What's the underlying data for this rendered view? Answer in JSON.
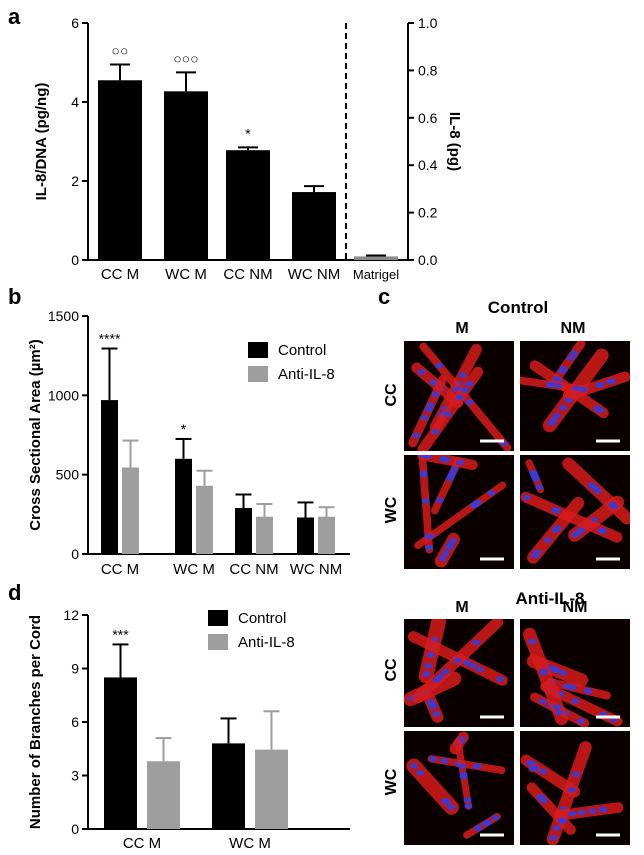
{
  "panel_labels": {
    "a": "a",
    "b": "b",
    "c": "c",
    "d": "d"
  },
  "colors": {
    "control": "#000000",
    "anti": "#9e9e9e",
    "matrigel": "#8a8a8a",
    "micro_red": "#d81b1b",
    "micro_blue": "#3b3bd6",
    "micro_bg": "#0a0000"
  },
  "chart_data": [
    {
      "id": "a",
      "type": "bar",
      "categories": [
        "CC M",
        "WC M",
        "CC NM",
        "WC NM",
        "Matrigel"
      ],
      "values": [
        4.55,
        4.27,
        2.78,
        1.72,
        null
      ],
      "errors": [
        0.4,
        0.48,
        0.07,
        0.15,
        null
      ],
      "annotations": [
        "○○",
        "○○○",
        "*",
        "",
        ""
      ],
      "ylabel": "IL-8/DNA (pg/ng)",
      "ylim": [
        0,
        6
      ],
      "yticks": [
        "0",
        "2",
        "4",
        "6"
      ],
      "y2label": "IL-8 (pg)",
      "y2lim": [
        0,
        1.0
      ],
      "y2ticks": [
        "0.0",
        "0.2",
        "0.4",
        "0.6",
        "0.8",
        "1.0"
      ],
      "secondary_values": {
        "Matrigel": 0.015
      },
      "secondary_errors": {
        "Matrigel": 0.004
      }
    },
    {
      "id": "b",
      "type": "bar",
      "categories": [
        "CC M",
        "WC M",
        "CC NM",
        "WC NM"
      ],
      "series": [
        {
          "name": "Control",
          "values": [
            970,
            600,
            290,
            230
          ],
          "errors": [
            325,
            125,
            85,
            95
          ]
        },
        {
          "name": "Anti-IL-8",
          "values": [
            545,
            430,
            235,
            235
          ],
          "errors": [
            170,
            95,
            80,
            60
          ]
        }
      ],
      "annotations": [
        "****",
        "*",
        "",
        ""
      ],
      "ylabel": "Cross Sectional Area (µm²)",
      "ylim": [
        0,
        1500
      ],
      "yticks": [
        "0",
        "500",
        "1000",
        "1500"
      ],
      "legend_position": "top-right"
    },
    {
      "id": "d",
      "type": "bar",
      "categories": [
        "CC M",
        "WC M"
      ],
      "series": [
        {
          "name": "Control",
          "values": [
            8.5,
            4.8
          ],
          "errors": [
            1.85,
            1.4
          ]
        },
        {
          "name": "Anti-IL-8",
          "values": [
            3.8,
            4.45
          ],
          "errors": [
            1.3,
            2.15
          ]
        }
      ],
      "annotations": [
        "***",
        ""
      ],
      "ylabel": "Number of Branches per Cord",
      "ylim": [
        0,
        12
      ],
      "yticks": [
        "0",
        "3",
        "6",
        "9",
        "12"
      ],
      "legend_position": "top-right"
    }
  ],
  "micrographs": {
    "top_title": "Control",
    "bottom_title": "Anti-IL-8",
    "col_labels": [
      "M",
      "NM"
    ],
    "row_labels": [
      "CC",
      "WC"
    ]
  }
}
